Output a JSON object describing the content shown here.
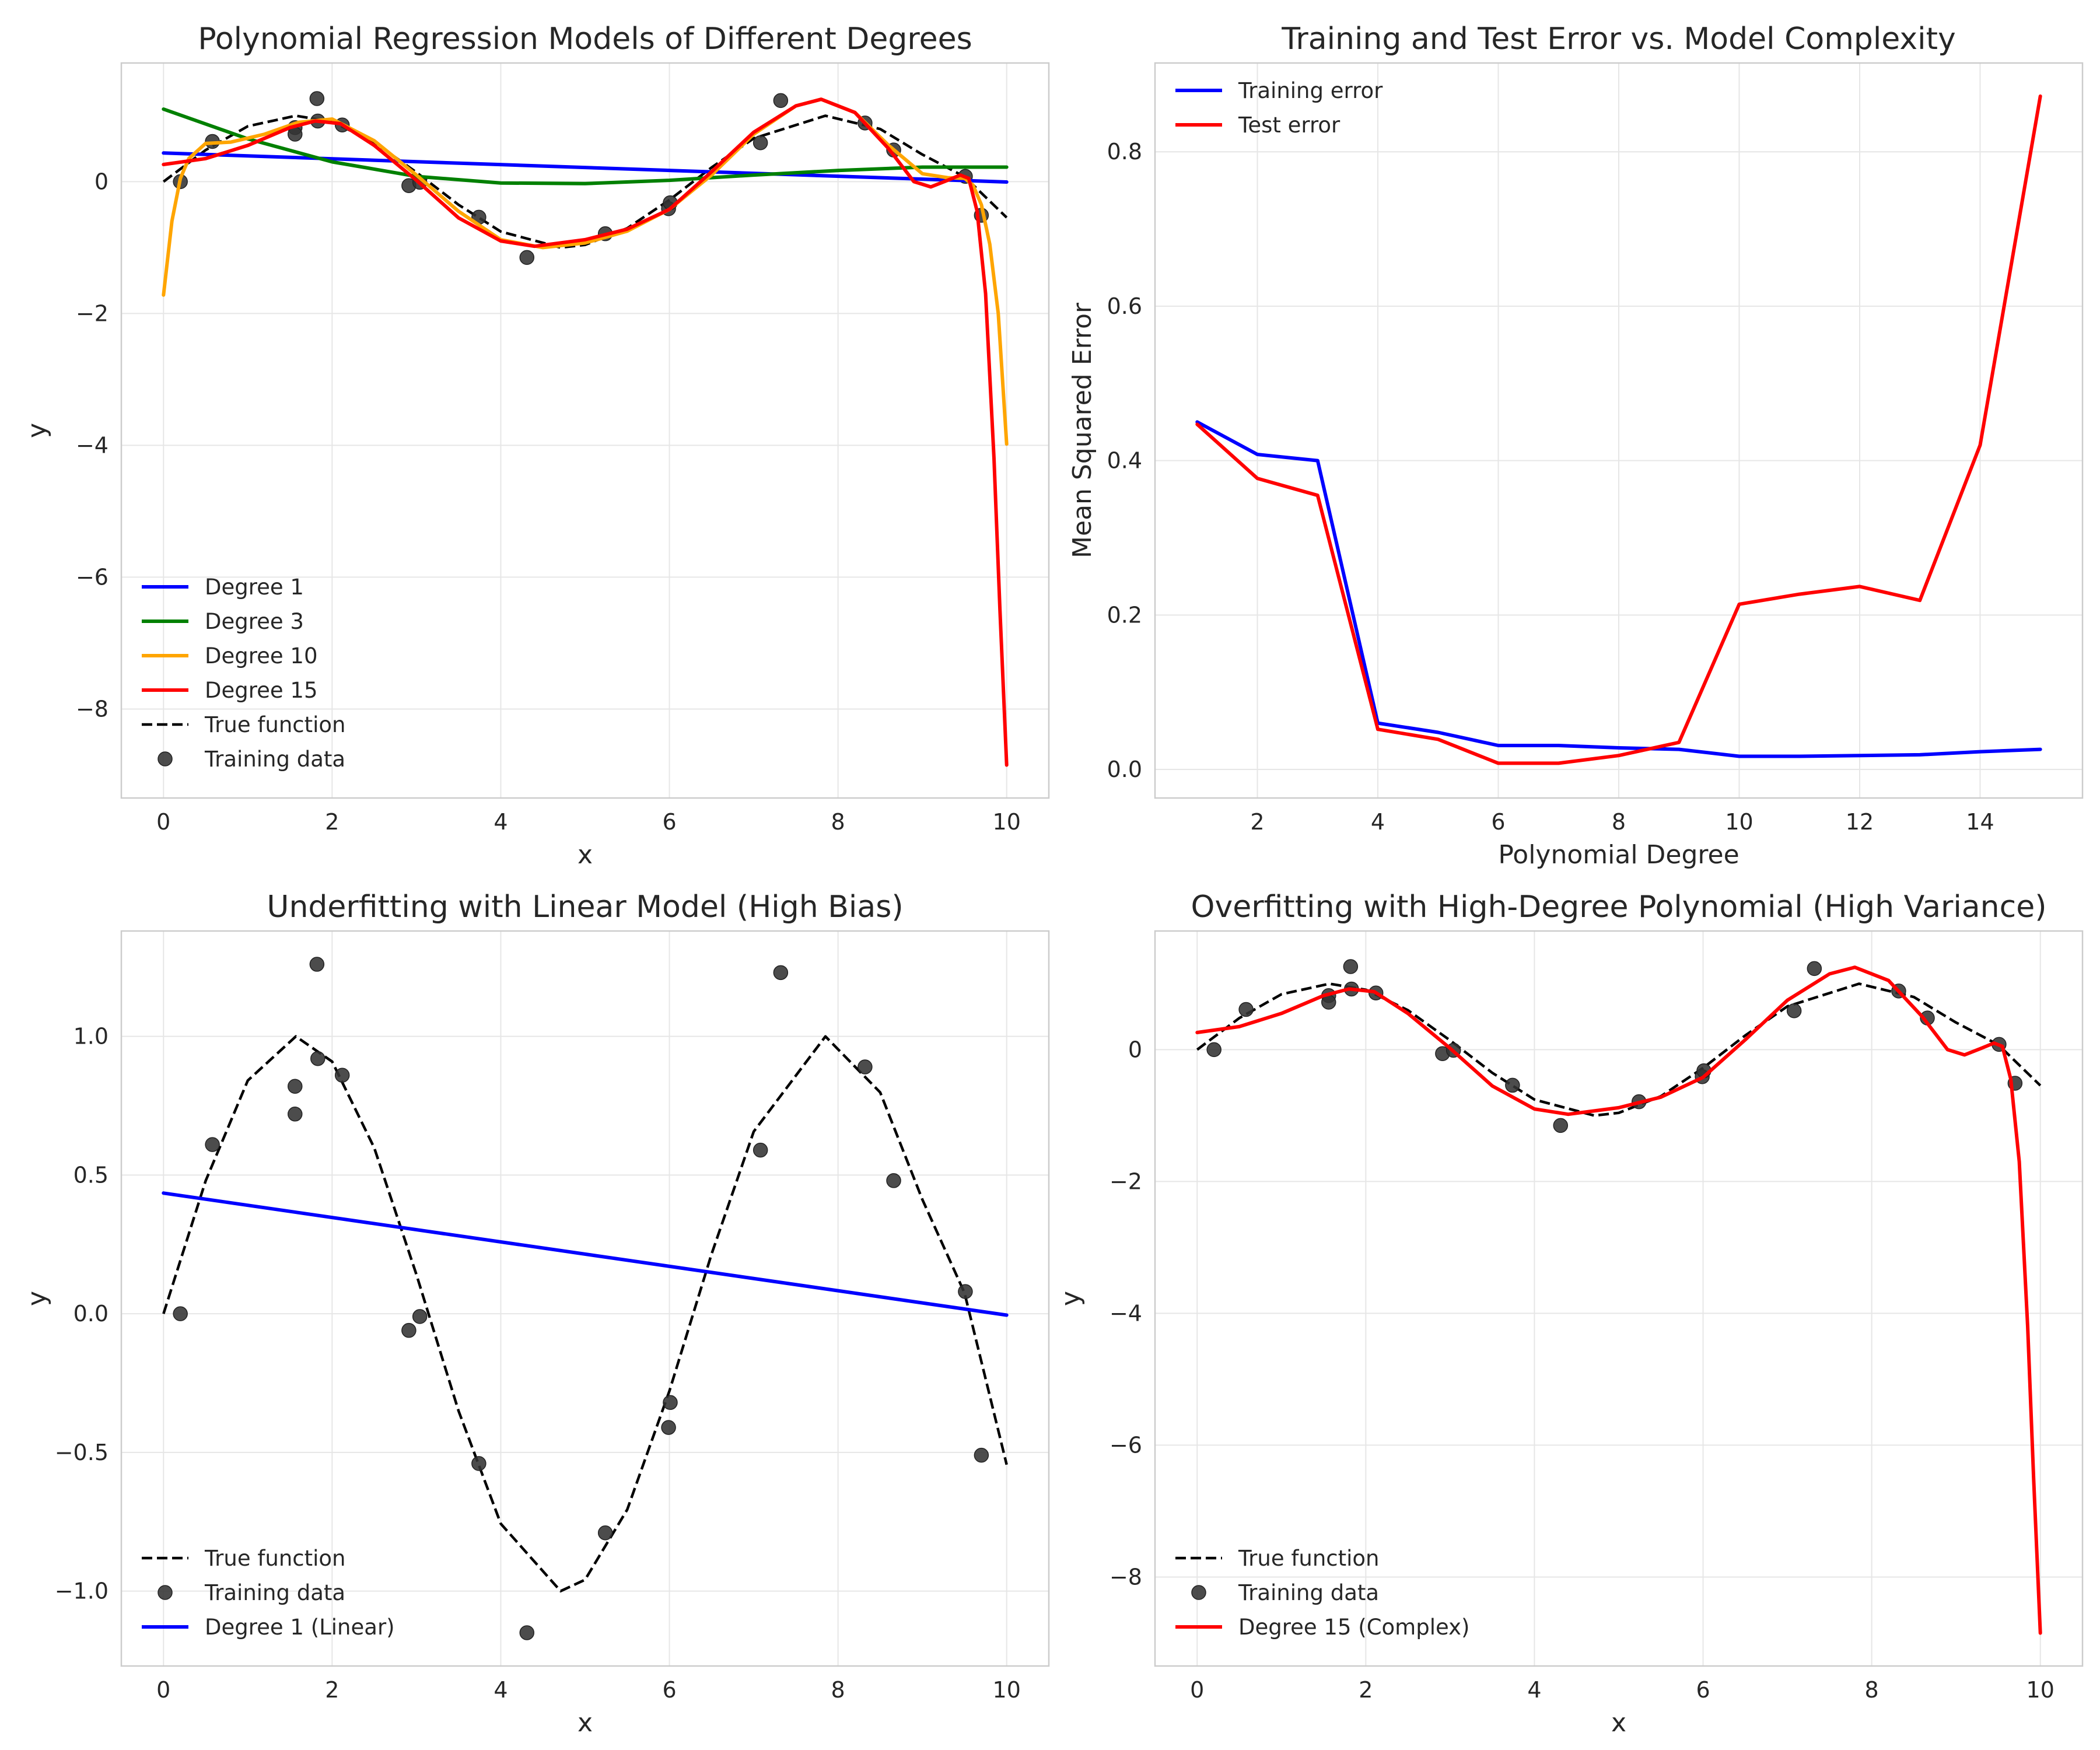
{
  "figure": {
    "background": "#ffffff"
  },
  "chart_data": [
    {
      "id": "p1",
      "type": "line",
      "title": "Polynomial Regression Models of Different Degrees",
      "xlabel": "x",
      "ylabel": "y",
      "xlim": [
        -0.5,
        10.5
      ],
      "ylim": [
        -9.35,
        1.8
      ],
      "xticks": [
        0,
        2,
        4,
        6,
        8,
        10
      ],
      "xtick_labels": [
        "0",
        "2",
        "4",
        "6",
        "8",
        "10"
      ],
      "yticks": [
        -8,
        -6,
        -4,
        -2,
        0
      ],
      "ytick_labels": [
        "−8",
        "−6",
        "−4",
        "−2",
        "0"
      ],
      "grid": true,
      "legend_position": "lower-left",
      "layers": [
        "true_function",
        "training_data",
        "deg1",
        "deg3",
        "deg10",
        "deg15"
      ],
      "legend": [
        {
          "label": "Degree 1",
          "kind": "line",
          "color": "#0000ff"
        },
        {
          "label": "Degree 3",
          "kind": "line",
          "color": "#008000"
        },
        {
          "label": "Degree 10",
          "kind": "line",
          "color": "#ffa500"
        },
        {
          "label": "Degree 15",
          "kind": "line",
          "color": "#ff0000"
        },
        {
          "label": "True function",
          "kind": "dashed",
          "color": "#000000"
        },
        {
          "label": "Training data",
          "kind": "marker",
          "color": "#333333"
        }
      ]
    },
    {
      "id": "p2",
      "type": "line",
      "title": "Training and Test Error vs. Model Complexity",
      "xlabel": "Polynomial Degree",
      "ylabel": "Mean Squared Error",
      "xlim": [
        0.3,
        15.7
      ],
      "ylim": [
        -0.037,
        0.915
      ],
      "xticks": [
        2,
        4,
        6,
        8,
        10,
        12,
        14
      ],
      "xtick_labels": [
        "2",
        "4",
        "6",
        "8",
        "10",
        "12",
        "14"
      ],
      "yticks": [
        0.0,
        0.2,
        0.4,
        0.6,
        0.8
      ],
      "ytick_labels": [
        "0.0",
        "0.2",
        "0.4",
        "0.6",
        "0.8"
      ],
      "grid": true,
      "legend_position": "upper-left",
      "x": [
        1,
        2,
        3,
        4,
        5,
        6,
        7,
        8,
        9,
        10,
        11,
        12,
        13,
        14,
        15
      ],
      "series": [
        {
          "name": "Training error",
          "color": "#0000ff",
          "values": [
            0.45,
            0.408,
            0.4,
            0.06,
            0.048,
            0.031,
            0.031,
            0.028,
            0.026,
            0.017,
            0.017,
            0.018,
            0.019,
            0.023,
            0.026
          ]
        },
        {
          "name": "Test error",
          "color": "#ff0000",
          "values": [
            0.447,
            0.377,
            0.355,
            0.052,
            0.039,
            0.008,
            0.008,
            0.018,
            0.035,
            0.214,
            0.227,
            0.237,
            0.219,
            0.42,
            0.872
          ]
        }
      ],
      "legend": [
        {
          "label": "Training error",
          "kind": "line",
          "color": "#0000ff"
        },
        {
          "label": "Test error",
          "kind": "line",
          "color": "#ff0000"
        }
      ]
    },
    {
      "id": "p3",
      "type": "line",
      "title": "Underfitting with Linear Model (High Bias)",
      "xlabel": "x",
      "ylabel": "y",
      "xlim": [
        -0.5,
        10.5
      ],
      "ylim": [
        -1.27,
        1.38
      ],
      "xticks": [
        0,
        2,
        4,
        6,
        8,
        10
      ],
      "xtick_labels": [
        "0",
        "2",
        "4",
        "6",
        "8",
        "10"
      ],
      "yticks": [
        -1.0,
        -0.5,
        0.0,
        0.5,
        1.0
      ],
      "ytick_labels": [
        "−1.0",
        "−0.5",
        "0.0",
        "0.5",
        "1.0"
      ],
      "grid": true,
      "legend_position": "lower-left",
      "layers": [
        "true_function",
        "training_data",
        "deg1"
      ],
      "legend": [
        {
          "label": "True function",
          "kind": "dashed",
          "color": "#000000"
        },
        {
          "label": "Training data",
          "kind": "marker",
          "color": "#333333"
        },
        {
          "label": "Degree 1 (Linear)",
          "kind": "line",
          "color": "#0000ff"
        }
      ]
    },
    {
      "id": "p4",
      "type": "line",
      "title": "Overfitting with High-Degree Polynomial (High Variance)",
      "xlabel": "x",
      "ylabel": "y",
      "xlim": [
        -0.5,
        10.5
      ],
      "ylim": [
        -9.35,
        1.8
      ],
      "xticks": [
        0,
        2,
        4,
        6,
        8,
        10
      ],
      "xtick_labels": [
        "0",
        "2",
        "4",
        "6",
        "8",
        "10"
      ],
      "yticks": [
        -8,
        -6,
        -4,
        -2,
        0
      ],
      "ytick_labels": [
        "−8",
        "−6",
        "−4",
        "−2",
        "0"
      ],
      "grid": true,
      "legend_position": "lower-left",
      "layers": [
        "true_function",
        "training_data",
        "deg15"
      ],
      "legend": [
        {
          "label": "True function",
          "kind": "dashed",
          "color": "#000000"
        },
        {
          "label": "Training data",
          "kind": "marker",
          "color": "#333333"
        },
        {
          "label": "Degree 15 (Complex)",
          "kind": "line",
          "color": "#ff0000"
        }
      ]
    }
  ],
  "shared_data": {
    "true_function": {
      "name": "True function",
      "color": "#000000",
      "dash": true,
      "x": [
        0,
        0.5,
        1,
        1.57,
        2,
        2.5,
        3,
        3.5,
        4,
        4.71,
        5,
        5.5,
        6,
        6.5,
        7,
        7.85,
        8.5,
        9,
        9.5,
        10
      ],
      "values": [
        0,
        0.479,
        0.841,
        1.0,
        0.909,
        0.598,
        0.141,
        -0.351,
        -0.757,
        -1.0,
        -0.959,
        -0.706,
        -0.279,
        0.215,
        0.657,
        1.0,
        0.798,
        0.412,
        0.075,
        -0.544
      ]
    },
    "training_data": {
      "name": "Training data",
      "color": "#333333",
      "x": [
        0.2,
        0.58,
        1.56,
        1.56,
        1.82,
        1.83,
        2.12,
        2.91,
        3.04,
        3.74,
        4.31,
        5.24,
        5.99,
        6.01,
        7.08,
        7.32,
        8.32,
        8.66,
        9.51,
        9.7
      ],
      "values": [
        0.0,
        0.61,
        0.82,
        0.72,
        1.26,
        0.92,
        0.86,
        -0.06,
        -0.01,
        -0.54,
        -1.15,
        -0.79,
        -0.41,
        -0.32,
        0.59,
        1.23,
        0.89,
        0.48,
        0.08,
        -0.51
      ]
    },
    "deg1": {
      "name": "Degree 1",
      "color": "#0000ff",
      "x": [
        0,
        10
      ],
      "values": [
        0.435,
        -0.005
      ]
    },
    "deg3": {
      "name": "Degree 3",
      "color": "#008000",
      "x": [
        0,
        1,
        2,
        3,
        4,
        5,
        6,
        7,
        8,
        9,
        10
      ],
      "values": [
        1.1,
        0.65,
        0.3,
        0.08,
        -0.02,
        -0.03,
        0.02,
        0.1,
        0.17,
        0.22,
        0.22
      ]
    },
    "deg10": {
      "name": "Degree 10",
      "color": "#ffa500",
      "x": [
        0,
        0.1,
        0.2,
        0.3,
        0.5,
        0.8,
        1.2,
        1.6,
        2.0,
        2.5,
        3.0,
        3.5,
        4.0,
        4.5,
        5.0,
        5.5,
        6.0,
        6.5,
        7.0,
        7.5,
        7.8,
        8.2,
        8.6,
        9.0,
        9.3,
        9.5,
        9.6,
        9.7,
        9.8,
        9.9,
        10
      ],
      "values": [
        -1.72,
        -0.6,
        0.05,
        0.35,
        0.58,
        0.6,
        0.72,
        0.9,
        0.95,
        0.62,
        0.1,
        -0.45,
        -0.88,
        -1.0,
        -0.93,
        -0.75,
        -0.42,
        0.1,
        0.72,
        1.15,
        1.25,
        1.05,
        0.55,
        0.12,
        0.06,
        0.05,
        -0.05,
        -0.35,
        -0.95,
        -2.0,
        -3.98
      ]
    },
    "deg15": {
      "name": "Degree 15",
      "color": "#ff0000",
      "x": [
        0,
        0.5,
        1.0,
        1.5,
        1.8,
        2.1,
        2.5,
        3.0,
        3.5,
        4.0,
        4.4,
        5.0,
        5.5,
        6.0,
        6.5,
        7.0,
        7.5,
        7.8,
        8.2,
        8.6,
        8.9,
        9.1,
        9.3,
        9.45,
        9.55,
        9.65,
        9.75,
        9.85,
        9.92,
        10
      ],
      "values": [
        0.26,
        0.35,
        0.55,
        0.82,
        0.92,
        0.88,
        0.55,
        0.02,
        -0.55,
        -0.9,
        -0.98,
        -0.88,
        -0.72,
        -0.42,
        0.15,
        0.75,
        1.15,
        1.25,
        1.05,
        0.5,
        0.0,
        -0.08,
        0.02,
        0.1,
        0.05,
        -0.45,
        -1.7,
        -4.2,
        -6.5,
        -8.85
      ]
    }
  }
}
